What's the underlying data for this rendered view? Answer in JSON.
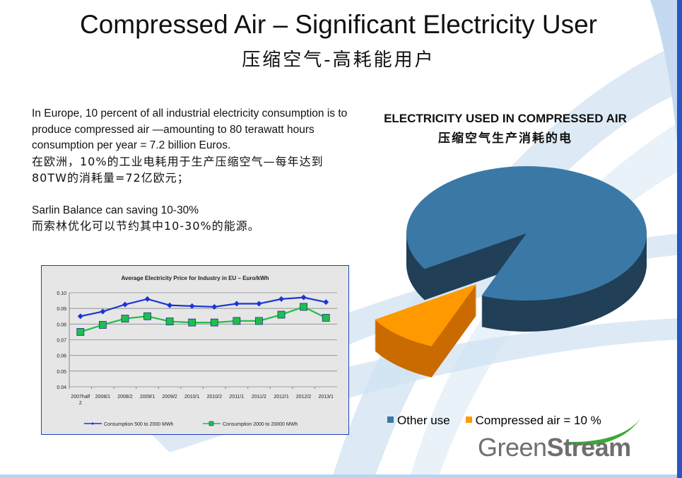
{
  "slide": {
    "title": "Compressed Air – Significant Electricity User",
    "subtitle_cn": "压缩空气-高耗能用户",
    "body": {
      "para1_en": "In Europe, 10 percent of all industrial electricity consumption is to produce compressed air —amounting to 80 terawatt hours consumption per year = 7.2 billion Euros.",
      "para1_cn": "在欧洲，10%的工业电耗用于生产压缩空气—每年达到80TW的消耗量=72亿欧元；",
      "para2_en": "Sarlin Balance can saving 10-30%",
      "para2_cn": "而索林优化可以节约其中10-30%的能源。"
    },
    "logo": {
      "part1": "Green",
      "part2": "Stream",
      "color": "#6f6f6f",
      "swoosh_color": "#3aa935"
    }
  },
  "chart_data": [
    {
      "type": "line",
      "title": "Average Electricity Price for Industry in EU – Euro/kWh",
      "categories": [
        "2007half 2",
        "2008/1",
        "2008/2",
        "2009/1",
        "2009/2",
        "2010/1",
        "2010/2",
        "2011/1",
        "2011/2",
        "2012/1",
        "2012/2",
        "2013/1"
      ],
      "ylim": [
        0.04,
        0.1
      ],
      "yticks": [
        "0.04",
        "0.05",
        "0.06",
        "0.07",
        "0.08",
        "0.09",
        "0.10"
      ],
      "grid": true,
      "legend_position": "bottom",
      "series": [
        {
          "name": "Consumption 500 to 2000 MWh",
          "color": "#1a35d6",
          "marker": "diamond",
          "values": [
            0.085,
            0.088,
            0.0925,
            0.096,
            0.092,
            0.0915,
            0.091,
            0.093,
            0.093,
            0.096,
            0.097,
            0.094
          ]
        },
        {
          "name": "Consumption 2000 to 20000 MWh",
          "color": "#1fbf4a",
          "marker": "square",
          "values": [
            0.075,
            0.0795,
            0.0835,
            0.085,
            0.0817,
            0.081,
            0.081,
            0.082,
            0.082,
            0.086,
            0.091,
            0.084
          ]
        }
      ]
    },
    {
      "type": "pie",
      "style": "3d-exploded",
      "title": "ELECTRICITY USED IN COMPRESSED AIR",
      "title_cn": "压缩空气生产消耗的电",
      "legend_position": "bottom",
      "slices": [
        {
          "label": "Other use",
          "value": 90,
          "color": "#3a79a6",
          "dark": "#213f57"
        },
        {
          "label": "Compressed air = 10 %",
          "value": 10,
          "color": "#ff9900",
          "dark": "#c96b00"
        }
      ]
    }
  ]
}
